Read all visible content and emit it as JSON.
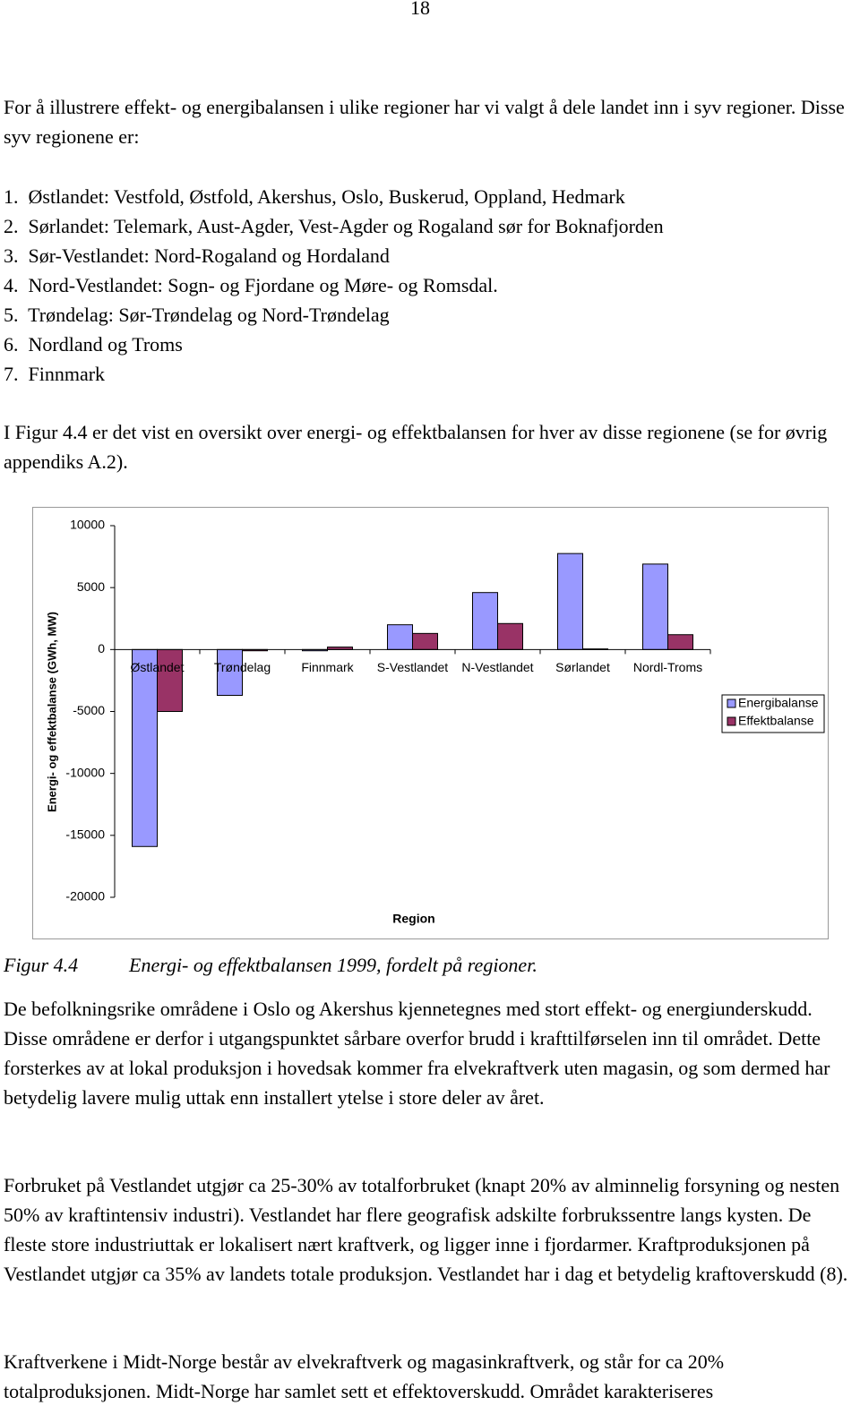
{
  "page_number": "18",
  "intro": "For å illustrere effekt- og energibalansen i ulike regioner har vi valgt å dele landet inn i syv regioner. Disse syv regionene er:",
  "list": [
    "1.  Østlandet: Vestfold, Østfold, Akershus, Oslo, Buskerud, Oppland, Hedmark",
    "2.  Sørlandet: Telemark, Aust-Agder, Vest-Agder og Rogaland sør for Boknafjorden",
    "3.  Sør-Vestlandet: Nord-Rogaland og Hordaland",
    "4.  Nord-Vestlandet: Sogn- og Fjordane og Møre- og Romsdal.",
    "5.  Trøndelag: Sør-Trøndelag og Nord-Trøndelag",
    "6.  Nordland og Troms",
    "7.  Finnmark"
  ],
  "figure_intro": "I Figur 4.4 er det vist en oversikt over energi- og effektbalansen for hver av disse regionene (se for øvrig appendiks A.2).",
  "chart_data": {
    "type": "bar",
    "y_label": "Energi- og effektbalanse (GWh, MW)",
    "x_label": "Region",
    "categories": [
      "Østlandet",
      "Trøndelag",
      "Finnmark",
      "S-Vestlandet",
      "N-Vestlandet",
      "Sørlandet",
      "Nordl-Troms"
    ],
    "series": [
      {
        "name": "Energibalanse",
        "color": "#9999ff",
        "values": [
          -15900,
          -3700,
          -100,
          2000,
          4600,
          7750,
          6900
        ]
      },
      {
        "name": "Effektbalanse",
        "color": "#993366",
        "values": [
          -5000,
          -100,
          200,
          1300,
          2100,
          50,
          1200
        ]
      }
    ],
    "ylim": [
      -20000,
      10000
    ],
    "yticks": [
      -20000,
      -15000,
      -10000,
      -5000,
      0,
      5000,
      10000
    ],
    "legend": "right"
  },
  "caption": {
    "label": "Figur 4.4",
    "text": "Energi- og effektbalansen 1999, fordelt på regioner."
  },
  "paragraphs": [
    "De befolkningsrike områdene i Oslo og Akershus kjennetegnes med stort effekt- og energiunderskudd. Disse områdene er derfor i utgangspunktet sårbare overfor brudd i krafttilførselen inn til området. Dette forsterkes av at lokal produksjon i hovedsak kommer fra elvekraftverk uten magasin, og som dermed har betydelig lavere mulig uttak enn installert ytelse i store deler av året.",
    "Forbruket på Vestlandet utgjør ca 25-30% av totalforbruket (knapt 20% av alminnelig forsyning og nesten 50% av kraftintensiv industri). Vestlandet har flere geografisk adskilte forbrukssentre langs kysten. De fleste store industriuttak er lokalisert nært kraftverk, og ligger inne i fjordarmer. Kraftproduksjonen på Vestlandet utgjør ca 35% av landets totale produksjon. Vestlandet har i dag et betydelig kraftoverskudd (8).",
    "Kraftverkene i Midt-Norge består av elvekraftverk og magasinkraftverk, og står for ca 20% totalproduksjonen. Midt-Norge har samlet sett et effektoverskudd. Området karakteriseres"
  ]
}
